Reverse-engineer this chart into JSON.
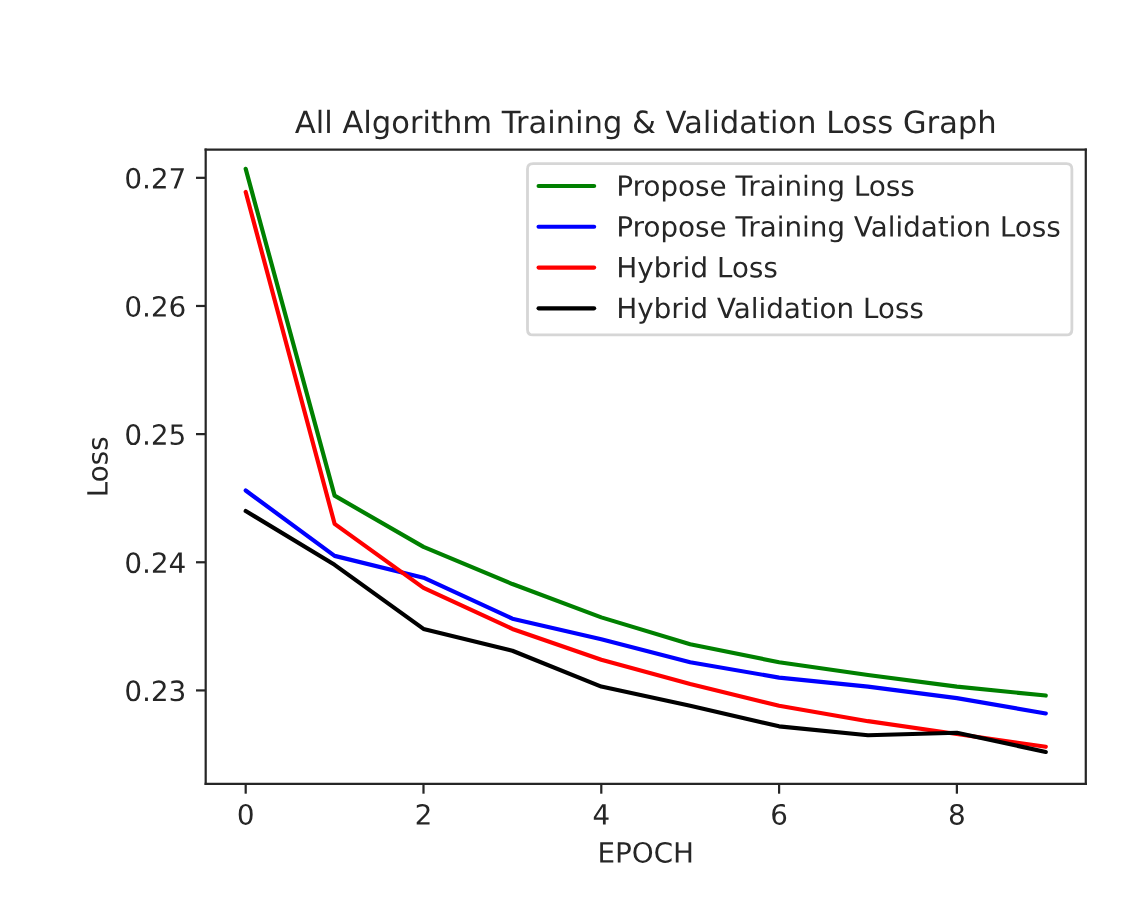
{
  "chart_data": {
    "type": "line",
    "title": "All Algorithm Training & Validation Loss Graph",
    "xlabel": "EPOCH",
    "ylabel": "Loss",
    "x": [
      0,
      1,
      2,
      3,
      4,
      5,
      6,
      7,
      8,
      9
    ],
    "series": [
      {
        "name": "Propose Training Loss",
        "color": "#008000",
        "values": [
          0.2707,
          0.2452,
          0.2412,
          0.2383,
          0.2357,
          0.2336,
          0.2322,
          0.2312,
          0.2303,
          0.2296
        ]
      },
      {
        "name": "Propose Training Validation Loss",
        "color": "#0000ff",
        "values": [
          0.2456,
          0.2405,
          0.2388,
          0.2356,
          0.234,
          0.2322,
          0.231,
          0.2303,
          0.2294,
          0.2282
        ]
      },
      {
        "name": "Hybrid Loss",
        "color": "#ff0000",
        "values": [
          0.2689,
          0.243,
          0.238,
          0.2348,
          0.2324,
          0.2305,
          0.2288,
          0.2276,
          0.2266,
          0.2256
        ]
      },
      {
        "name": "Hybrid Validation Loss",
        "color": "#000000",
        "values": [
          0.244,
          0.2398,
          0.2348,
          0.2331,
          0.2303,
          0.2288,
          0.2272,
          0.2265,
          0.2267,
          0.2252
        ]
      }
    ],
    "xlim": [
      -0.45,
      9.45
    ],
    "ylim": [
      0.2227,
      0.2722
    ],
    "xticks": [
      0,
      2,
      4,
      6,
      8
    ],
    "yticks": [
      0.23,
      0.24,
      0.25,
      0.26,
      0.27
    ],
    "legend": "top right",
    "grid": false,
    "marker": "none",
    "line_style": "solid"
  }
}
